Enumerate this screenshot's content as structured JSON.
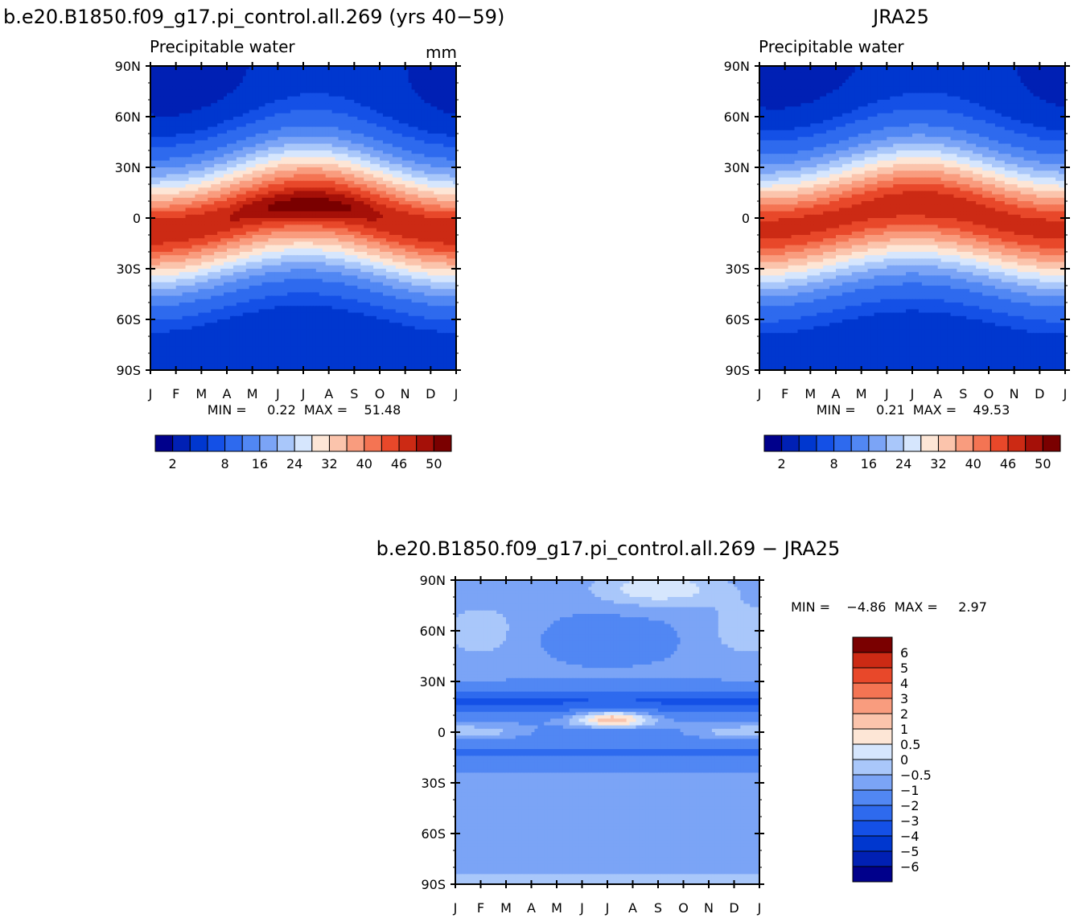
{
  "chart_data": [
    {
      "type": "heatmap",
      "header": "b.e20.B1850.f09_g17.pi_control.all.269 (yrs 40−59)",
      "title": "Precipitable water",
      "units": "mm",
      "x_ticks": [
        "J",
        "F",
        "M",
        "A",
        "M",
        "J",
        "J",
        "A",
        "S",
        "O",
        "N",
        "D",
        "J"
      ],
      "y_ticks": [
        "90N",
        "60N",
        "30N",
        "0",
        "30S",
        "60S",
        "90S"
      ],
      "ylim": [
        -90,
        90
      ],
      "stats": "MIN =     0.22  MAX =    51.48",
      "min": 0.22,
      "max": 51.48,
      "colorbar_levels": [
        2,
        4,
        6,
        8,
        12,
        16,
        20,
        24,
        28,
        32,
        36,
        40,
        43,
        46,
        48,
        50
      ],
      "colorbar_labels": [
        "2",
        "8",
        "16",
        "24",
        "32",
        "40",
        "46",
        "50"
      ],
      "colors": [
        "#00008b",
        "#0020b4",
        "#0037cf",
        "#1450e6",
        "#2e6aee",
        "#5187f3",
        "#7ba4f6",
        "#a9c7fa",
        "#d6e6fd",
        "#fde6d6",
        "#fbc4ac",
        "#f99c7e",
        "#f47453",
        "#e8482a",
        "#cc2a14",
        "#a51008",
        "#7a0000"
      ],
      "anomaly": false,
      "data_note": "",
      "nlat": 37,
      "nmon": 13
    },
    {
      "type": "heatmap",
      "header": "JRA25",
      "title": "Precipitable water",
      "units": "",
      "x_ticks": [
        "J",
        "F",
        "M",
        "A",
        "M",
        "J",
        "J",
        "A",
        "S",
        "O",
        "N",
        "D",
        "J"
      ],
      "y_ticks": [
        "90N",
        "60N",
        "30N",
        "0",
        "30S",
        "60S",
        "90S"
      ],
      "ylim": [
        -90,
        90
      ],
      "stats": "MIN =     0.21  MAX =    49.53",
      "min": 0.21,
      "max": 49.53,
      "colorbar_levels": [
        2,
        4,
        6,
        8,
        12,
        16,
        20,
        24,
        28,
        32,
        36,
        40,
        43,
        46,
        48,
        50
      ],
      "colorbar_labels": [
        "2",
        "8",
        "16",
        "24",
        "32",
        "40",
        "46",
        "50"
      ],
      "colors": [
        "#00008b",
        "#0020b4",
        "#0037cf",
        "#1450e6",
        "#2e6aee",
        "#5187f3",
        "#7ba4f6",
        "#a9c7fa",
        "#d6e6fd",
        "#fde6d6",
        "#fbc4ac",
        "#f99c7e",
        "#f47453",
        "#e8482a",
        "#cc2a14",
        "#a51008",
        "#7a0000"
      ],
      "anomaly": false
    },
    {
      "type": "heatmap",
      "header": "b.e20.B1850.f09_g17.pi_control.all.269 − JRA25",
      "title": "",
      "units": "",
      "x_ticks": [
        "J",
        "F",
        "M",
        "A",
        "M",
        "J",
        "J",
        "A",
        "S",
        "O",
        "N",
        "D",
        "J"
      ],
      "y_ticks": [
        "90N",
        "60N",
        "30N",
        "0",
        "30S",
        "60S",
        "90S"
      ],
      "ylim": [
        -90,
        90
      ],
      "stats": "MIN =    −4.86  MAX =     2.97",
      "min": -4.86,
      "max": 2.97,
      "colorbar_levels": [
        -6,
        -5,
        -4,
        -3,
        -2,
        -1,
        -0.5,
        0,
        0.5,
        1,
        2,
        3,
        4,
        5,
        6
      ],
      "colorbar_labels": [
        "6",
        "5",
        "4",
        "3",
        "2",
        "1",
        "0.5",
        "0",
        "−0.5",
        "−1",
        "−2",
        "−3",
        "−4",
        "−5",
        "−6"
      ],
      "colors": [
        "#00008b",
        "#0020b4",
        "#0037cf",
        "#1450e6",
        "#2e6aee",
        "#5187f3",
        "#7ba4f6",
        "#a9c7fa",
        "#d6e6fd",
        "#fde6d6",
        "#fbc4ac",
        "#f99c7e",
        "#f47453",
        "#e8482a",
        "#cc2a14",
        "#7a0000"
      ],
      "anomaly": true
    }
  ]
}
